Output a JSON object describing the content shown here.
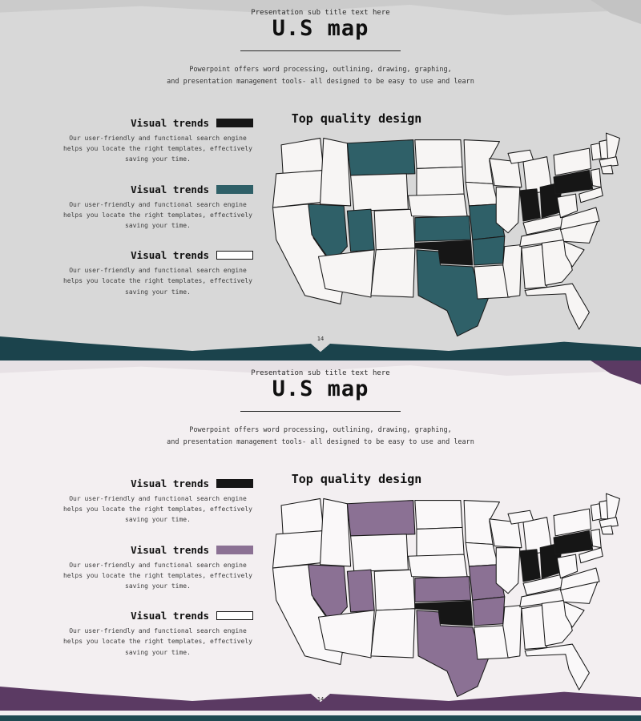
{
  "slides": [
    {
      "theme": "teal",
      "subtitle": "Presentation sub title text here",
      "title": "U.S map",
      "intro_line1": "Powerpoint offers word processing, outlining, drawing, graphing,",
      "intro_line2": "and presentation management tools- all designed to be easy to use and learn",
      "map_heading": "Top quality design",
      "page_number": "14",
      "legend": [
        {
          "label": "Visual trends",
          "swatch": "dark",
          "desc_line1": "Our user-friendly and functional search engine",
          "desc_line2": "helps you locate the right templates, effectively",
          "desc_line3": "saving your time."
        },
        {
          "label": "Visual trends",
          "swatch": "accent",
          "desc_line1": "Our user-friendly and functional search engine",
          "desc_line2": "helps you locate the right templates, effectively",
          "desc_line3": "saving your time."
        },
        {
          "label": "Visual trends",
          "swatch": "outline",
          "desc_line1": "Our user-friendly and functional search engine",
          "desc_line2": "helps you locate the right templates, effectively",
          "desc_line3": "saving your time."
        }
      ],
      "map": {
        "accent_states": [
          "MT",
          "NV",
          "UT",
          "KS",
          "MO",
          "AR",
          "TX"
        ],
        "dark_states": [
          "OK",
          "IN",
          "OH",
          "PA"
        ]
      },
      "colors": {
        "background": "#d8d8d8",
        "top_band": "#cbcbcb",
        "corner": "#c3c3c3",
        "ribbon": "#1b434c",
        "accent": "#2f6068",
        "dark": "#161616",
        "map_fill": "#f7f5f4",
        "outline": "#1a1a1a",
        "swatch_outline_fill": "#ffffff"
      }
    },
    {
      "theme": "purple",
      "subtitle": "Presentation sub title text here",
      "title": "U.S map",
      "intro_line1": "Powerpoint offers word processing, outlining, drawing, graphing,",
      "intro_line2": "and presentation management tools- all designed to be easy to use and learn",
      "map_heading": "Top quality design",
      "page_number": "14",
      "legend": [
        {
          "label": "Visual trends",
          "swatch": "dark",
          "desc_line1": "Our user-friendly and functional search engine",
          "desc_line2": "helps you locate the right templates, effectively",
          "desc_line3": "saving your time."
        },
        {
          "label": "Visual trends",
          "swatch": "accent",
          "desc_line1": "Our user-friendly and functional search engine",
          "desc_line2": "helps you locate the right templates, effectively",
          "desc_line3": "saving your time."
        },
        {
          "label": "Visual trends",
          "swatch": "outline",
          "desc_line1": "Our user-friendly and functional search engine",
          "desc_line2": "helps you locate the right templates, effectively",
          "desc_line3": "saving your time."
        }
      ],
      "map": {
        "accent_states": [
          "MT",
          "NV",
          "UT",
          "KS",
          "MO",
          "AR",
          "TX"
        ],
        "dark_states": [
          "OK",
          "IN",
          "OH",
          "PA"
        ]
      },
      "colors": {
        "background": "#f3eff1",
        "top_band": "#e7e1e5",
        "corner": "#5b3a63",
        "ribbon": "#5b3a63",
        "accent": "#8b7194",
        "dark": "#161616",
        "map_fill": "#faf8f9",
        "outline": "#1a1a1a",
        "swatch_outline_fill": "#ffffff",
        "edge": "#1f4a52"
      }
    }
  ]
}
